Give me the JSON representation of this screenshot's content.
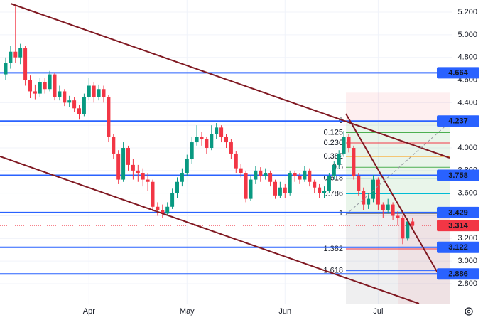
{
  "chart_data": {
    "type": "candlestick",
    "categories": [
      null,
      null,
      null,
      null,
      null,
      null,
      null,
      null,
      null,
      null,
      null,
      null,
      null,
      null,
      null,
      null,
      null,
      "Apr",
      null,
      null,
      null,
      null,
      null,
      null,
      null,
      null,
      null,
      null,
      null,
      null,
      null,
      null,
      null,
      null,
      null,
      null,
      null,
      "May",
      null,
      null,
      null,
      null,
      null,
      null,
      null,
      null,
      null,
      null,
      null,
      null,
      null,
      null,
      null,
      null,
      null,
      null,
      null,
      "Jun",
      null,
      null,
      null,
      null,
      null,
      null,
      null,
      null,
      null,
      null,
      null,
      null,
      null,
      null,
      null,
      null,
      null,
      null,
      "Jul",
      null,
      null,
      null,
      null,
      null,
      null,
      null
    ],
    "open": [
      4.65,
      4.75,
      4.85,
      4.8,
      4.88,
      4.6,
      4.5,
      4.48,
      4.58,
      4.52,
      4.65,
      4.45,
      4.5,
      4.4,
      4.42,
      4.35,
      4.3,
      4.45,
      4.55,
      4.45,
      4.52,
      4.45,
      4.1,
      3.95,
      3.72,
      4.0,
      3.85,
      3.8,
      3.78,
      3.72,
      3.7,
      3.48,
      3.45,
      3.42,
      3.48,
      3.6,
      3.7,
      3.78,
      3.9,
      4.05,
      4.1,
      4.08,
      4.0,
      4.12,
      4.18,
      4.1,
      4.05,
      3.95,
      3.82,
      3.78,
      3.55,
      3.72,
      3.8,
      3.75,
      3.78,
      3.7,
      3.58,
      3.65,
      3.6,
      3.78,
      3.75,
      3.72,
      3.8,
      3.7,
      3.65,
      3.6,
      3.62,
      3.75,
      3.85,
      3.95,
      4.1,
      4.0,
      3.75,
      3.62,
      3.5,
      3.55,
      3.72,
      3.5,
      3.45,
      3.5,
      3.4,
      3.38,
      3.2,
      3.35
    ],
    "high": [
      4.8,
      4.9,
      5.25,
      4.92,
      4.9,
      4.64,
      4.56,
      4.62,
      4.62,
      4.68,
      4.66,
      4.55,
      4.52,
      4.46,
      4.45,
      4.38,
      4.48,
      4.62,
      4.58,
      4.56,
      4.55,
      4.47,
      4.12,
      3.98,
      4.05,
      4.02,
      3.9,
      3.85,
      3.82,
      3.78,
      3.72,
      3.52,
      3.5,
      3.52,
      3.64,
      3.74,
      3.82,
      3.94,
      4.1,
      4.2,
      4.14,
      4.1,
      4.2,
      4.22,
      4.2,
      4.12,
      4.08,
      3.97,
      3.86,
      3.8,
      3.76,
      3.84,
      3.83,
      3.82,
      3.8,
      3.72,
      3.7,
      3.68,
      3.8,
      3.8,
      3.78,
      3.84,
      3.82,
      3.72,
      3.68,
      3.66,
      3.78,
      3.88,
      3.98,
      4.15,
      4.12,
      4.02,
      3.78,
      3.65,
      3.6,
      3.76,
      3.74,
      3.52,
      3.55,
      3.52,
      3.44,
      3.4,
      3.38,
      3.38
    ],
    "low": [
      4.6,
      4.7,
      4.75,
      4.74,
      4.55,
      4.44,
      4.43,
      4.45,
      4.48,
      4.5,
      4.42,
      4.42,
      4.37,
      4.36,
      4.32,
      4.25,
      4.28,
      4.42,
      4.4,
      4.42,
      4.4,
      4.05,
      3.9,
      3.68,
      3.7,
      3.8,
      3.72,
      3.7,
      3.66,
      3.62,
      3.44,
      3.4,
      3.38,
      3.4,
      3.46,
      3.56,
      3.66,
      3.75,
      3.86,
      4.02,
      4.02,
      3.95,
      3.98,
      4.08,
      4.05,
      4.0,
      3.9,
      3.78,
      3.74,
      3.52,
      3.53,
      3.68,
      3.7,
      3.72,
      3.66,
      3.55,
      3.56,
      3.56,
      3.58,
      3.7,
      3.68,
      3.7,
      3.66,
      3.6,
      3.56,
      3.56,
      3.6,
      3.72,
      3.82,
      3.92,
      3.96,
      3.72,
      3.58,
      3.45,
      3.46,
      3.52,
      3.45,
      3.38,
      3.42,
      3.36,
      3.32,
      3.15,
      3.18,
      3.28
    ],
    "close": [
      4.75,
      4.85,
      4.8,
      4.88,
      4.6,
      4.5,
      4.48,
      4.58,
      4.52,
      4.65,
      4.45,
      4.5,
      4.4,
      4.42,
      4.35,
      4.3,
      4.45,
      4.55,
      4.45,
      4.52,
      4.45,
      4.1,
      3.95,
      3.72,
      4.0,
      3.85,
      3.8,
      3.78,
      3.72,
      3.7,
      3.48,
      3.45,
      3.42,
      3.48,
      3.6,
      3.7,
      3.78,
      3.9,
      4.05,
      4.1,
      4.08,
      4.0,
      4.12,
      4.18,
      4.1,
      4.05,
      3.95,
      3.82,
      3.78,
      3.55,
      3.72,
      3.8,
      3.75,
      3.78,
      3.7,
      3.58,
      3.65,
      3.6,
      3.78,
      3.75,
      3.72,
      3.8,
      3.7,
      3.65,
      3.6,
      3.62,
      3.75,
      3.85,
      3.95,
      4.1,
      4.0,
      3.75,
      3.62,
      3.5,
      3.55,
      3.72,
      3.5,
      3.45,
      3.5,
      3.4,
      3.38,
      3.2,
      3.35,
      3.314
    ],
    "up_color": "#089981",
    "down_color": "#f23645",
    "ylim": [
      2.624,
      5.307
    ],
    "yticks": [
      {
        "value": 2.8,
        "label": "2.800"
      },
      {
        "value": 3.0,
        "label": "3.000"
      },
      {
        "value": 3.2,
        "label": "3.200"
      },
      {
        "value": 3.4,
        "label": "3.400"
      },
      {
        "value": 3.6,
        "label": "3.600"
      },
      {
        "value": 3.8,
        "label": "3.800"
      },
      {
        "value": 4.0,
        "label": "4.000"
      },
      {
        "value": 4.2,
        "label": "4.200"
      },
      {
        "value": 4.4,
        "label": "4.400"
      },
      {
        "value": 4.6,
        "label": "4.600"
      },
      {
        "value": 4.8,
        "label": "4.800"
      },
      {
        "value": 5.0,
        "label": "5.000"
      },
      {
        "value": 5.2,
        "label": "5.200"
      }
    ],
    "grid": true,
    "levels": [
      4.664,
      4.237,
      3.758,
      3.429,
      3.122,
      2.886
    ],
    "level_color": "#2962ff",
    "current_price": 3.314,
    "current_color": "#f23645",
    "fib_range": [
      4.237,
      3.42
    ],
    "fib_levels": [
      {
        "value": 0,
        "color": "#787b86"
      },
      {
        "value": 0.125,
        "color": "#4caf50"
      },
      {
        "value": 0.236,
        "color": "#f23645"
      },
      {
        "value": 0.382,
        "color": "#ff9800"
      },
      {
        "value": 0.5,
        "color": "#4caf50"
      },
      {
        "value": 0.618,
        "color": "#089981"
      },
      {
        "value": 0.786,
        "color": "#00bcd4"
      },
      {
        "value": 1,
        "color": "#787b86"
      },
      {
        "value": 1.382,
        "color": "#f23645"
      },
      {
        "value": 1.618,
        "color": "#2962ff"
      }
    ]
  }
}
